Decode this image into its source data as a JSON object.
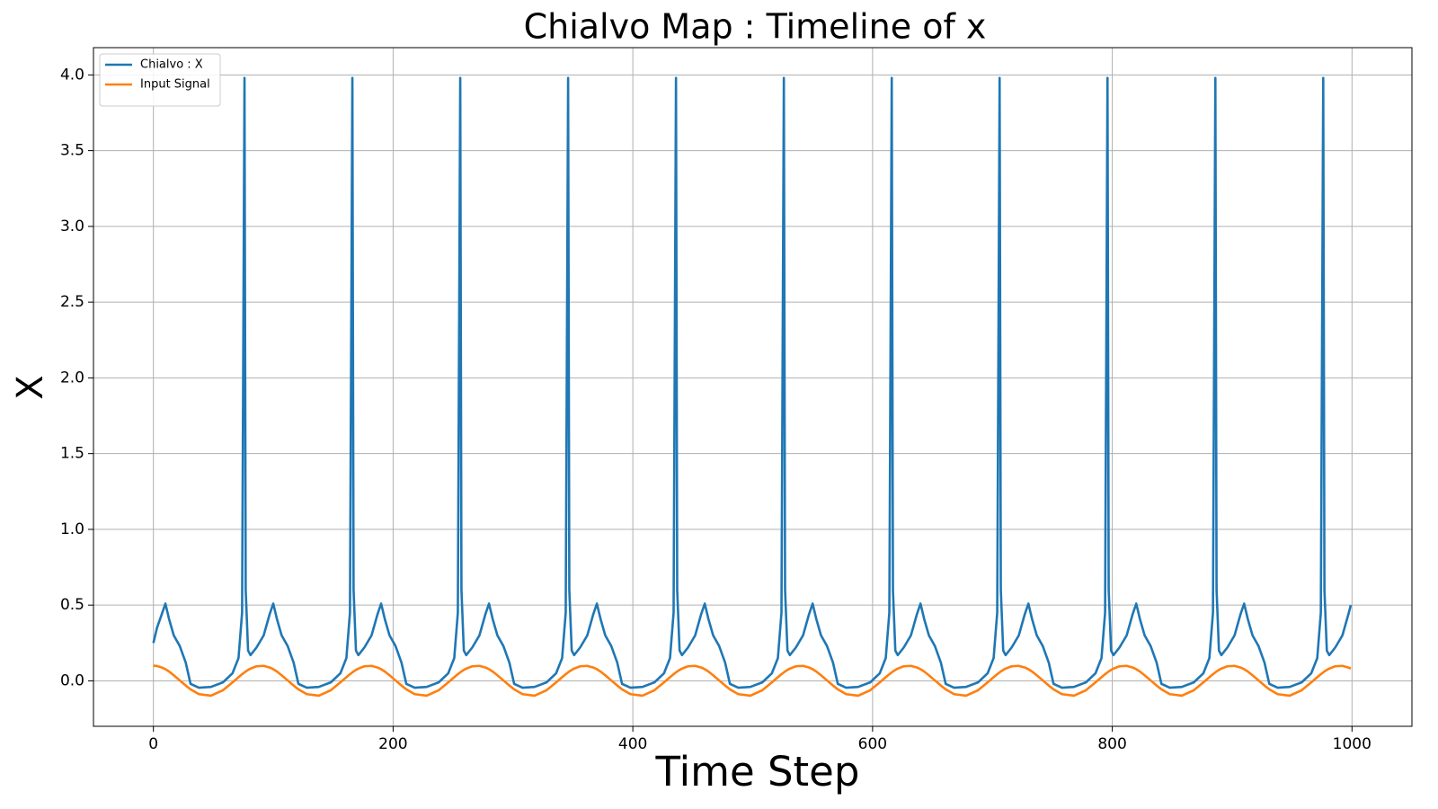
{
  "chart_data": {
    "type": "line",
    "title": "Chialvo Map : Timeline of x",
    "x_label": "Time Step",
    "y_label": "X",
    "xlim": [
      -50,
      1050
    ],
    "ylim": [
      -0.3,
      4.18
    ],
    "xticks": [
      0,
      200,
      400,
      600,
      800,
      1000
    ],
    "yticks": [
      {
        "value": 0,
        "label": "0.0"
      },
      0.5,
      {
        "value": 1,
        "label": "1.0"
      },
      1.5,
      {
        "value": 2,
        "label": "2.0"
      },
      2.5,
      {
        "value": 3,
        "label": "3.0"
      },
      3.5,
      {
        "value": 4,
        "label": "4.0"
      }
    ],
    "grid": true,
    "legend": "upper left",
    "x": [
      0,
      3,
      7,
      10,
      13,
      17,
      22,
      27,
      31,
      38,
      48,
      58,
      66,
      71,
      74,
      76,
      77,
      79,
      81,
      86,
      92,
      97,
      100,
      103,
      107,
      112,
      117,
      121,
      128,
      138,
      148,
      156,
      161,
      164,
      166,
      167,
      169,
      171,
      176,
      182,
      187,
      190,
      193,
      197,
      202,
      207,
      211,
      218,
      228,
      238,
      246,
      251,
      254,
      256,
      257,
      259,
      261,
      266,
      272,
      277,
      280,
      283,
      287,
      292,
      297,
      301,
      308,
      318,
      328,
      336,
      341,
      344,
      346,
      347,
      349,
      351,
      356,
      362,
      367,
      370,
      373,
      377,
      382,
      387,
      391,
      398,
      408,
      418,
      426,
      431,
      434,
      436,
      437,
      439,
      441,
      446,
      452,
      457,
      460,
      463,
      467,
      472,
      477,
      481,
      488,
      498,
      508,
      516,
      521,
      524,
      526,
      527,
      529,
      531,
      536,
      542,
      547,
      550,
      553,
      557,
      562,
      567,
      571,
      578,
      588,
      598,
      606,
      611,
      614,
      616,
      617,
      619,
      621,
      626,
      632,
      637,
      640,
      643,
      647,
      652,
      657,
      661,
      668,
      678,
      688,
      696,
      701,
      704,
      706,
      707,
      709,
      711,
      716,
      722,
      727,
      730,
      733,
      737,
      742,
      747,
      751,
      758,
      768,
      778,
      786,
      791,
      794,
      796,
      797,
      799,
      801,
      806,
      812,
      817,
      820,
      823,
      827,
      832,
      837,
      841,
      848,
      858,
      868,
      876,
      881,
      884,
      886,
      887,
      889,
      891,
      896,
      902,
      907,
      910,
      913,
      917,
      922,
      927,
      931,
      938,
      948,
      958,
      966,
      971,
      974,
      976,
      977,
      979,
      981,
      986,
      992,
      997,
      999
    ],
    "series": [
      {
        "name": "Chialvo : X",
        "color": "#1f77b4",
        "values": [
          0.25,
          0.35,
          0.44,
          0.51,
          0.41,
          0.3,
          0.23,
          0.12,
          -0.02,
          -0.045,
          -0.04,
          -0.01,
          0.05,
          0.15,
          0.45,
          3.98,
          0.6,
          0.2,
          0.17,
          0.22,
          0.3,
          0.44,
          0.51,
          0.41,
          0.3,
          0.23,
          0.12,
          -0.02,
          -0.045,
          -0.04,
          -0.01,
          0.05,
          0.15,
          0.45,
          3.98,
          0.6,
          0.2,
          0.17,
          0.22,
          0.3,
          0.44,
          0.51,
          0.41,
          0.3,
          0.23,
          0.12,
          -0.02,
          -0.045,
          -0.04,
          -0.01,
          0.05,
          0.15,
          0.45,
          3.98,
          0.6,
          0.2,
          0.17,
          0.22,
          0.3,
          0.44,
          0.51,
          0.41,
          0.3,
          0.23,
          0.12,
          -0.02,
          -0.045,
          -0.04,
          -0.01,
          0.05,
          0.15,
          0.45,
          3.98,
          0.6,
          0.2,
          0.17,
          0.22,
          0.3,
          0.44,
          0.51,
          0.41,
          0.3,
          0.23,
          0.12,
          -0.02,
          -0.045,
          -0.04,
          -0.01,
          0.05,
          0.15,
          0.45,
          3.98,
          0.6,
          0.2,
          0.17,
          0.22,
          0.3,
          0.44,
          0.51,
          0.41,
          0.3,
          0.23,
          0.12,
          -0.02,
          -0.045,
          -0.04,
          -0.01,
          0.05,
          0.15,
          0.45,
          3.98,
          0.6,
          0.2,
          0.17,
          0.22,
          0.3,
          0.44,
          0.51,
          0.41,
          0.3,
          0.23,
          0.12,
          -0.02,
          -0.045,
          -0.04,
          -0.01,
          0.05,
          0.15,
          0.45,
          3.98,
          0.6,
          0.2,
          0.17,
          0.22,
          0.3,
          0.44,
          0.51,
          0.41,
          0.3,
          0.23,
          0.12,
          -0.02,
          -0.045,
          -0.04,
          -0.01,
          0.05,
          0.15,
          0.45,
          3.98,
          0.6,
          0.2,
          0.17,
          0.22,
          0.3,
          0.44,
          0.51,
          0.41,
          0.3,
          0.23,
          0.12,
          -0.02,
          -0.045,
          -0.04,
          -0.01,
          0.05,
          0.15,
          0.45,
          3.98,
          0.6,
          0.2,
          0.17,
          0.22,
          0.3,
          0.44,
          0.51,
          0.41,
          0.3,
          0.23,
          0.12,
          -0.02,
          -0.045,
          -0.04,
          -0.01,
          0.05,
          0.15,
          0.45,
          3.98,
          0.6,
          0.2,
          0.17,
          0.22,
          0.3,
          0.44,
          0.51,
          0.41,
          0.3,
          0.23,
          0.12,
          -0.02,
          -0.045,
          -0.04,
          -0.01,
          0.05,
          0.15,
          0.45,
          3.98,
          0.6,
          0.2,
          0.17,
          0.22,
          0.3,
          0.44,
          0.5
        ]
      },
      {
        "name": "Input Signal",
        "color": "#ff7f0e",
        "values": [
          0.1,
          0.098,
          0.088,
          0.077,
          0.062,
          0.037,
          0.003,
          -0.031,
          -0.056,
          -0.088,
          -0.098,
          -0.062,
          -0.01,
          0.024,
          0.044,
          0.056,
          0.062,
          0.072,
          0.081,
          0.096,
          0.099,
          0.088,
          0.077,
          0.062,
          0.037,
          0.003,
          -0.031,
          -0.056,
          -0.088,
          -0.098,
          -0.062,
          -0.01,
          0.024,
          0.044,
          0.056,
          0.062,
          0.072,
          0.081,
          0.096,
          0.099,
          0.088,
          0.077,
          0.062,
          0.037,
          0.003,
          -0.031,
          -0.056,
          -0.088,
          -0.098,
          -0.062,
          -0.01,
          0.024,
          0.044,
          0.056,
          0.062,
          0.072,
          0.081,
          0.096,
          0.099,
          0.088,
          0.077,
          0.062,
          0.037,
          0.003,
          -0.031,
          -0.056,
          -0.088,
          -0.098,
          -0.062,
          -0.01,
          0.024,
          0.044,
          0.056,
          0.062,
          0.072,
          0.081,
          0.096,
          0.099,
          0.088,
          0.077,
          0.062,
          0.037,
          0.003,
          -0.031,
          -0.056,
          -0.088,
          -0.098,
          -0.062,
          -0.01,
          0.024,
          0.044,
          0.056,
          0.062,
          0.072,
          0.081,
          0.096,
          0.099,
          0.088,
          0.077,
          0.062,
          0.037,
          0.003,
          -0.031,
          -0.056,
          -0.088,
          -0.098,
          -0.062,
          -0.01,
          0.024,
          0.044,
          0.056,
          0.062,
          0.072,
          0.081,
          0.096,
          0.099,
          0.088,
          0.077,
          0.062,
          0.037,
          0.003,
          -0.031,
          -0.056,
          -0.088,
          -0.098,
          -0.062,
          -0.01,
          0.024,
          0.044,
          0.056,
          0.062,
          0.072,
          0.081,
          0.096,
          0.099,
          0.088,
          0.077,
          0.062,
          0.037,
          0.003,
          -0.031,
          -0.056,
          -0.088,
          -0.098,
          -0.062,
          -0.01,
          0.024,
          0.044,
          0.056,
          0.062,
          0.072,
          0.081,
          0.096,
          0.099,
          0.088,
          0.077,
          0.062,
          0.037,
          0.003,
          -0.031,
          -0.056,
          -0.088,
          -0.098,
          -0.062,
          -0.01,
          0.024,
          0.044,
          0.056,
          0.062,
          0.072,
          0.081,
          0.096,
          0.099,
          0.088,
          0.077,
          0.062,
          0.037,
          0.003,
          -0.031,
          -0.056,
          -0.088,
          -0.098,
          -0.062,
          -0.01,
          0.024,
          0.044,
          0.056,
          0.062,
          0.072,
          0.081,
          0.096,
          0.099,
          0.088,
          0.077,
          0.062,
          0.037,
          0.003,
          -0.031,
          -0.056,
          -0.088,
          -0.098,
          -0.062,
          -0.01,
          0.024,
          0.044,
          0.056,
          0.062,
          0.072,
          0.081,
          0.096,
          0.099,
          0.088,
          0.081
        ]
      }
    ]
  }
}
